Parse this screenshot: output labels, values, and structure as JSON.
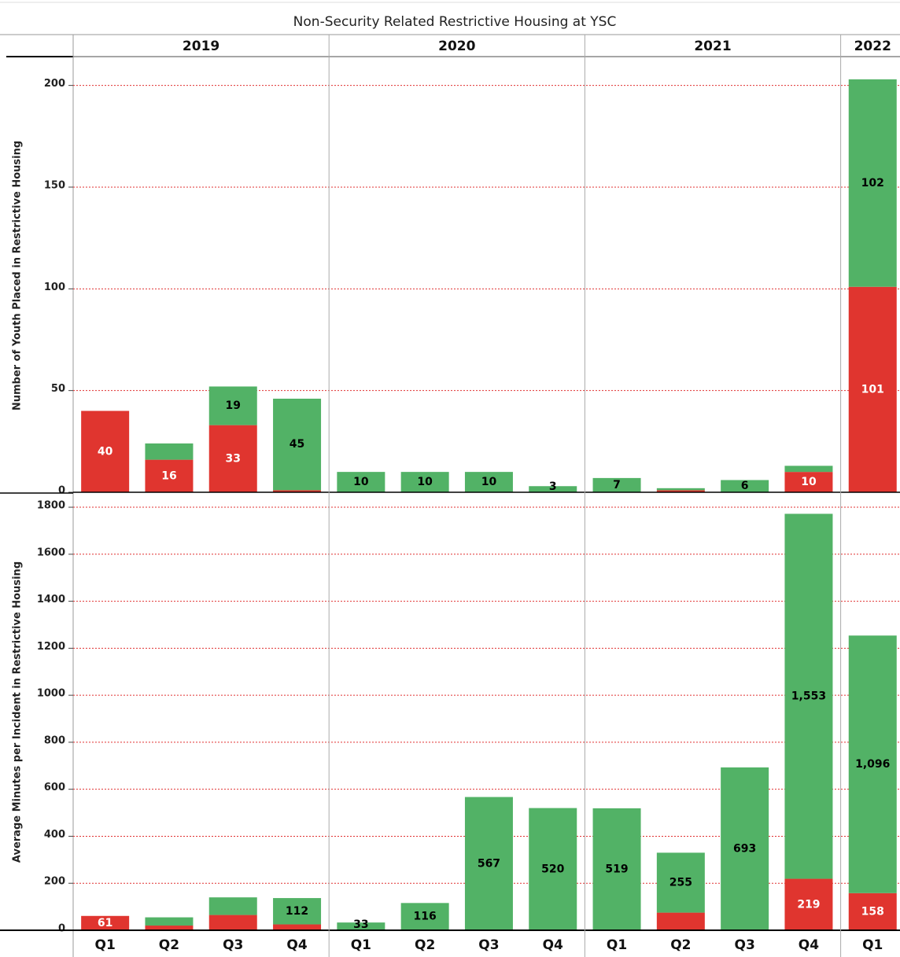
{
  "title": "Non-Security Related Restrictive Housing at YSC",
  "year_groups": [
    {
      "label": "2019",
      "quarters": 4
    },
    {
      "label": "2020",
      "quarters": 4
    },
    {
      "label": "2021",
      "quarters": 4
    },
    {
      "label": "2022",
      "quarters": 1
    }
  ],
  "chart_data": [
    {
      "type": "bar",
      "stacked": true,
      "ylabel": "Number of Youth Placed in Restrictive Housing",
      "ylim": [
        0,
        213
      ],
      "yticks": [
        0,
        50,
        100,
        150,
        200
      ],
      "grid": true,
      "series": [
        {
          "color": "#e0352f",
          "label_color": "#ffffff",
          "values": [
            40,
            16,
            33,
            1,
            0,
            0,
            0,
            0,
            0,
            1,
            0,
            10,
            101
          ],
          "value_labels": [
            "40",
            "16",
            "33",
            null,
            null,
            null,
            null,
            null,
            null,
            null,
            null,
            "10",
            "101"
          ]
        },
        {
          "color": "#52b266",
          "label_color": "#000000",
          "values": [
            0,
            8,
            19,
            45,
            10,
            10,
            10,
            3,
            7,
            1,
            6,
            3,
            102
          ],
          "value_labels": [
            null,
            null,
            "19",
            "45",
            "10",
            "10",
            "10",
            "3",
            "7",
            null,
            "6",
            null,
            "102"
          ]
        }
      ]
    },
    {
      "type": "bar",
      "stacked": true,
      "ylabel": "Average Minutes per Incident in Restrictive Housing",
      "categories": [
        "Q1",
        "Q2",
        "Q3",
        "Q4",
        "Q1",
        "Q2",
        "Q3",
        "Q4",
        "Q1",
        "Q2",
        "Q3",
        "Q4",
        "Q1"
      ],
      "ylim": [
        0,
        1857
      ],
      "yticks": [
        0,
        200,
        400,
        600,
        800,
        1000,
        1200,
        1400,
        1600,
        1800
      ],
      "grid": true,
      "series": [
        {
          "color": "#e0352f",
          "label_color": "#ffffff",
          "values": [
            61,
            20,
            65,
            25,
            0,
            0,
            0,
            0,
            0,
            75,
            0,
            219,
            158
          ],
          "value_labels": [
            "61",
            null,
            null,
            null,
            null,
            null,
            null,
            null,
            null,
            null,
            null,
            "219",
            "158"
          ]
        },
        {
          "color": "#52b266",
          "label_color": "#000000",
          "values": [
            0,
            35,
            75,
            112,
            33,
            116,
            567,
            520,
            519,
            255,
            693,
            1553,
            1096
          ],
          "value_labels": [
            null,
            null,
            null,
            "112",
            "33",
            "116",
            "567",
            "520",
            "519",
            "255",
            "693",
            "1,553",
            "1,096"
          ]
        }
      ]
    }
  ]
}
